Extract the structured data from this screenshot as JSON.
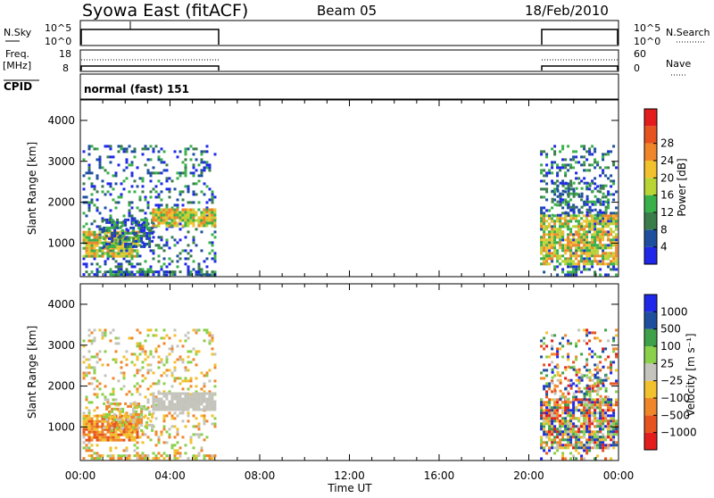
{
  "header": {
    "title": "Syowa East (fitACF)",
    "beam": "Beam 05",
    "date": "18/Feb/2010"
  },
  "top_panels": {
    "nsky_label": "N.Sky",
    "nsearch_label": "N.Search",
    "nsky_ticks": [
      "10^5",
      "10^0"
    ],
    "freq_label_line1": "Freq.",
    "freq_label_line2": "[MHz]",
    "freq_ticks": [
      "18",
      "8"
    ],
    "nave_ticks": [
      "60",
      "0"
    ],
    "nave_label": "Nave",
    "cpid_label": "CPID",
    "cpid_value": "normal (fast) 151"
  },
  "colors": {
    "power": [
      "#1f28e8",
      "#1e4f9e",
      "#3a7d4a",
      "#39b04a",
      "#b8d435",
      "#f2c12e",
      "#f0862a",
      "#e6531e",
      "#e31d1d"
    ],
    "velocity": [
      "#e31d1d",
      "#e6531e",
      "#f0862a",
      "#f2c12e",
      "#c4c4bd",
      "#8ad04a",
      "#3fa04a",
      "#1e4f9e",
      "#1f28e8"
    ]
  },
  "chart_data": [
    {
      "type": "heatmap",
      "quantity": "power",
      "ylabel": "Slant Range [km]",
      "yticks": [
        1000,
        2000,
        3000,
        4000
      ],
      "ylim": [
        180,
        4500
      ],
      "xlim_hours": [
        0,
        24
      ],
      "colorbar_label": "Power [dB]",
      "colorbar_ticks": [
        "4",
        "8",
        "12",
        "16",
        "20",
        "24",
        "28"
      ]
    },
    {
      "type": "heatmap",
      "quantity": "velocity",
      "ylabel": "Slant Range [km]",
      "yticks": [
        1000,
        2000,
        3000,
        4000
      ],
      "ylim": [
        180,
        4500
      ],
      "xlim_hours": [
        0,
        24
      ],
      "colorbar_label": "Velocity [m s⁻¹]",
      "colorbar_ticks": [
        "1000",
        "500",
        "100",
        "25",
        "−25",
        "−100",
        "−500",
        "−1000"
      ]
    }
  ],
  "xaxis": {
    "label": "Time UT",
    "ticks": [
      "00:00",
      "04:00",
      "08:00",
      "12:00",
      "16:00",
      "20:00",
      "00:00"
    ]
  }
}
